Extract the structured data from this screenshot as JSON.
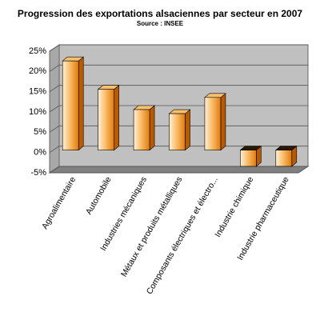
{
  "chart_data": {
    "type": "bar",
    "title": "Progression des exportations alsaciennes par secteur en 2007",
    "subtitle": "Source : INSEE",
    "categories": [
      "Agroalimentaire",
      "Automobile",
      "Industries mécaniques",
      "Métaux et produits métalliques",
      "Composants électriques et électro...",
      "Industrie chimique",
      "Industrie pharmaceutique"
    ],
    "values": [
      22,
      15,
      10,
      9,
      13,
      -4,
      -4
    ],
    "color": "#f5a030",
    "ylim": [
      -5,
      25
    ],
    "yticks": [
      {
        "value": -5,
        "label": "-5%"
      },
      {
        "value": 0,
        "label": "0%"
      },
      {
        "value": 5,
        "label": "5%"
      },
      {
        "value": 10,
        "label": "10%"
      },
      {
        "value": 15,
        "label": "15%"
      },
      {
        "value": 20,
        "label": "20%"
      },
      {
        "value": 25,
        "label": "25%"
      }
    ],
    "grid": true
  }
}
